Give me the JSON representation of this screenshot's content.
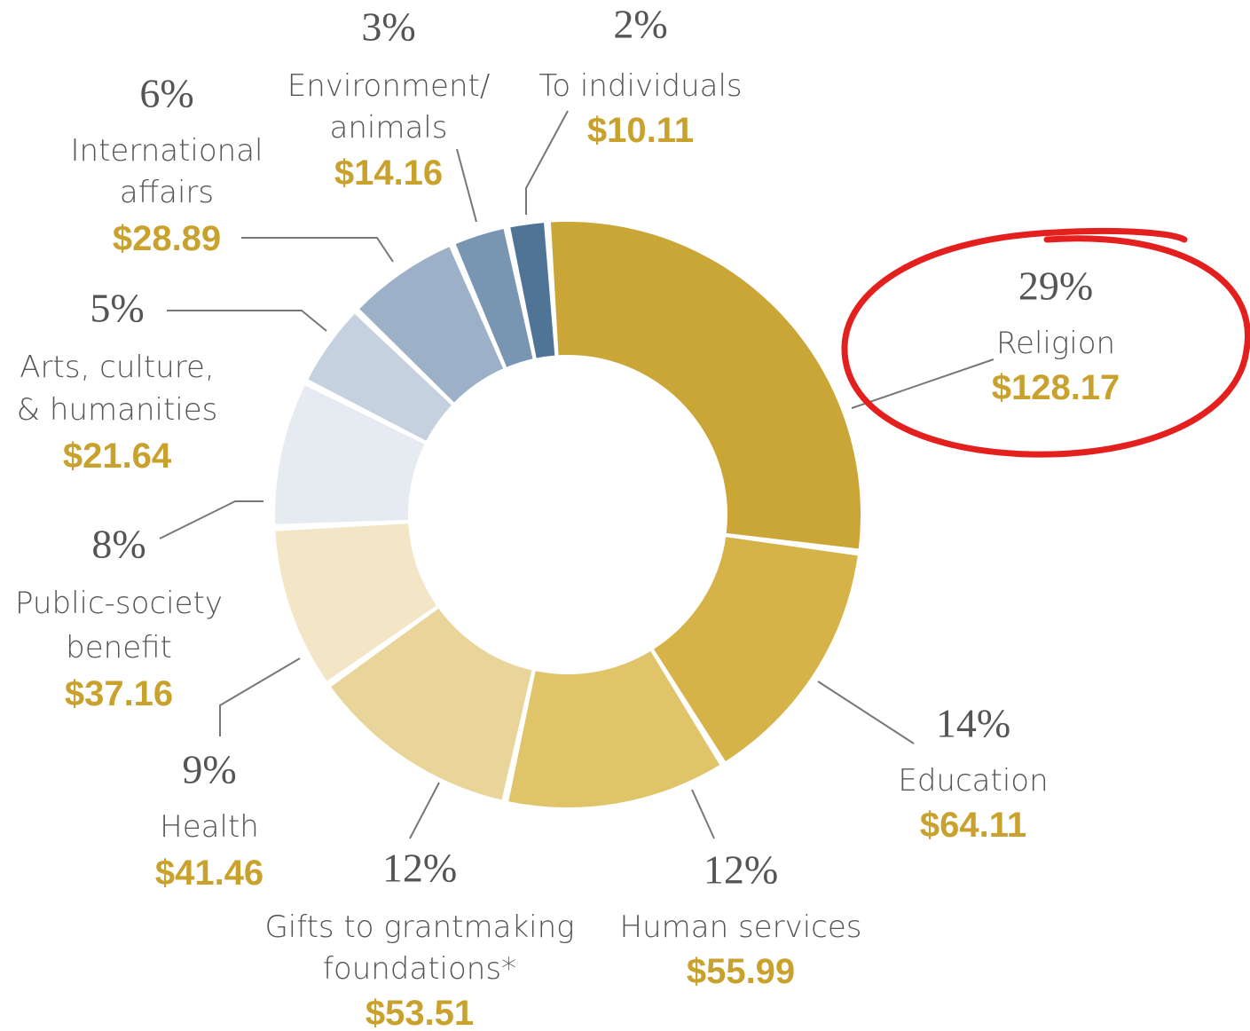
{
  "chart_data": {
    "type": "donut",
    "categories": [
      [
        "Religion"
      ],
      [
        "Education"
      ],
      [
        "Human services"
      ],
      [
        "Gifts to grantmaking",
        "foundations*"
      ],
      [
        "Health"
      ],
      [
        "Public-society",
        "benefit"
      ],
      [
        "Arts, culture,",
        "& humanities"
      ],
      [
        "International",
        "affairs"
      ],
      [
        "Environment/",
        "animals"
      ],
      [
        "To individuals"
      ]
    ],
    "values": [
      29,
      14,
      12,
      12,
      9,
      8,
      5,
      6,
      3,
      2
    ],
    "value_labels": [
      "29%",
      "14%",
      "12%",
      "12%",
      "9%",
      "8%",
      "5%",
      "6%",
      "3%",
      "2%"
    ],
    "amounts": [
      128.17,
      64.11,
      55.99,
      53.51,
      41.46,
      37.16,
      21.64,
      28.89,
      14.16,
      10.11
    ],
    "amount_labels": [
      "$128.17",
      "$64.11",
      "$55.99",
      "$53.51",
      "$41.46",
      "$37.16",
      "$21.64",
      "$28.89",
      "$14.16",
      "$10.11"
    ],
    "colors": [
      "#c9a636",
      "#d5b348",
      "#dfc46a",
      "#e9d49a",
      "#f2e6c6",
      "#e6ebf1",
      "#c5d1de",
      "#9cb1c7",
      "#7895b1",
      "#4f7495"
    ]
  }
}
